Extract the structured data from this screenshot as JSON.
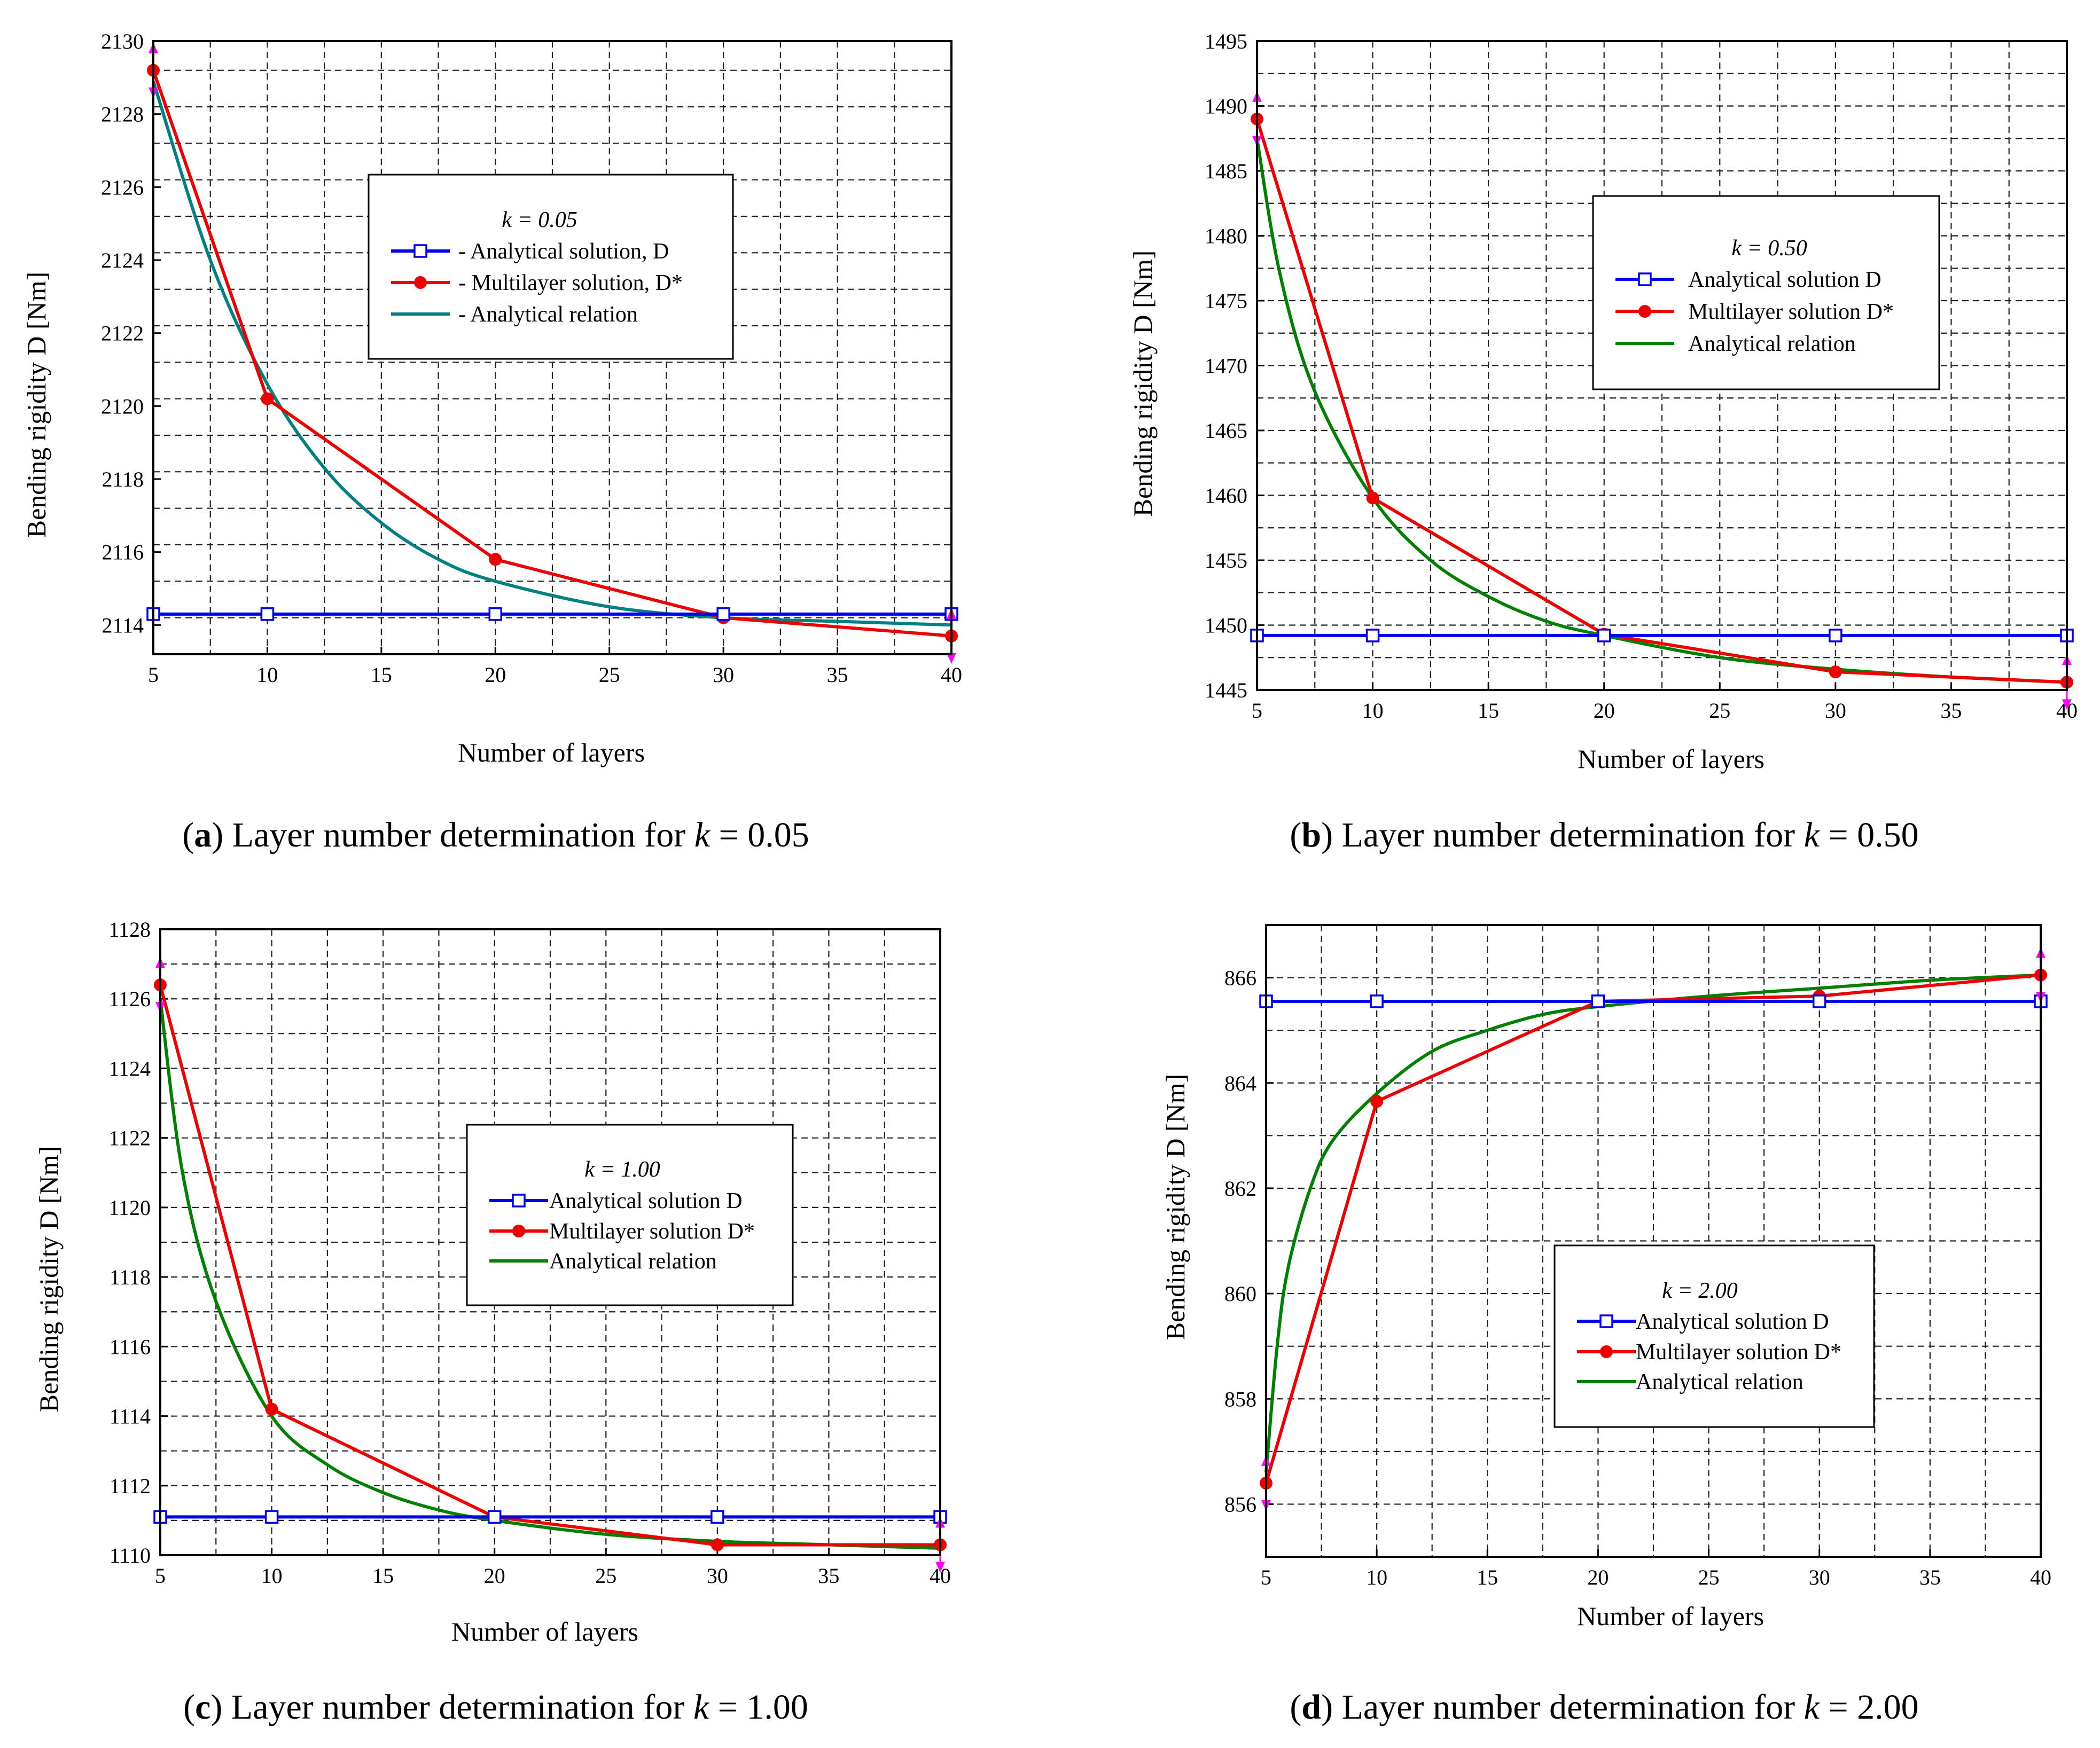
{
  "colors": {
    "analytical_solution": "#0000ee",
    "multilayer_solution": "#ee0000",
    "analytical_relation_a": "#008080",
    "analytical_relation": "#008000",
    "error_marker": "#ff00ff"
  },
  "chart_data": [
    {
      "type": "line",
      "panel_label": "a",
      "caption": "Layer number determination for ",
      "caption_k": "k",
      "caption_value": " = 0.05",
      "xlabel": "Number of layers",
      "ylabel": "Bending rigidity D  [Nm]",
      "xlim": [
        5,
        40
      ],
      "xticks": [
        5,
        10,
        15,
        20,
        25,
        30,
        35,
        40
      ],
      "ylim": [
        2113.2,
        2130
      ],
      "yticks": [
        2114,
        2116,
        2118,
        2120,
        2122,
        2124,
        2126,
        2128,
        2130
      ],
      "legend_title": "k = 0.05",
      "legend_position": "upper-middle",
      "legend": [
        "-  Analytical solution, D",
        "-  Multilayer solution, D*",
        "-  Analytical relation"
      ],
      "series": [
        {
          "name": "Analytical solution, D",
          "x": [
            5,
            10,
            20,
            30,
            40
          ],
          "y": [
            2114.3,
            2114.3,
            2114.3,
            2114.3,
            2114.3
          ]
        },
        {
          "name": "Multilayer solution, D*",
          "x": [
            5,
            10,
            20,
            30,
            40
          ],
          "y": [
            2129.2,
            2120.2,
            2115.8,
            2114.2,
            2113.7
          ]
        },
        {
          "name": "Analytical relation",
          "x": [
            5,
            7.5,
            10,
            12.5,
            15,
            17.5,
            20,
            25,
            30,
            35,
            40
          ],
          "y": [
            2128.9,
            2124.0,
            2120.6,
            2118.3,
            2116.8,
            2115.8,
            2115.2,
            2114.5,
            2114.2,
            2114.1,
            2114.0
          ]
        }
      ],
      "error_markers_x": [
        5,
        40
      ]
    },
    {
      "type": "line",
      "panel_label": "b",
      "caption": "Layer number determination for ",
      "caption_k": "k",
      "caption_value": " = 0.50",
      "xlabel": "Number of layers",
      "ylabel": "Bending rigidity D  [Nm]",
      "xlim": [
        5,
        40
      ],
      "xticks": [
        5,
        10,
        15,
        20,
        25,
        30,
        35,
        40
      ],
      "ylim": [
        1445,
        1495
      ],
      "yticks": [
        1445,
        1450,
        1455,
        1460,
        1465,
        1470,
        1475,
        1480,
        1485,
        1490,
        1495
      ],
      "legend_title": "k = 0.50",
      "legend_position": "upper-right",
      "legend": [
        "Analytical solution D",
        "Multilayer solution D*",
        "Analytical relation"
      ],
      "series": [
        {
          "name": "Analytical solution D",
          "x": [
            5,
            10,
            20,
            30,
            40
          ],
          "y": [
            1449.2,
            1449.2,
            1449.2,
            1449.2,
            1449.2
          ]
        },
        {
          "name": "Multilayer solution D*",
          "x": [
            5,
            10,
            20,
            30,
            40
          ],
          "y": [
            1489.0,
            1459.8,
            1449.3,
            1446.4,
            1445.6
          ]
        },
        {
          "name": "Analytical relation",
          "x": [
            5,
            6,
            7.5,
            10,
            12.5,
            15,
            17.5,
            20,
            25,
            30,
            35,
            40
          ],
          "y": [
            1487.5,
            1477.0,
            1468.0,
            1459.8,
            1455.0,
            1452.2,
            1450.3,
            1449.2,
            1447.5,
            1446.6,
            1446.0,
            1445.6
          ]
        }
      ],
      "error_markers_x": [
        5,
        40
      ]
    },
    {
      "type": "line",
      "panel_label": "c",
      "caption": "Layer number determination for ",
      "caption_k": "k",
      "caption_value": " = 1.00",
      "xlabel": "Number of layers",
      "ylabel": "Bending rigidity D  [Nm]",
      "xlim": [
        5,
        40
      ],
      "xticks": [
        5,
        10,
        15,
        20,
        25,
        30,
        35,
        40
      ],
      "ylim": [
        1110,
        1128
      ],
      "yticks": [
        1110,
        1112,
        1114,
        1116,
        1118,
        1120,
        1122,
        1124,
        1126,
        1128
      ],
      "legend_title": "k = 1.00",
      "legend_position": "center-right",
      "legend": [
        "Analytical solution D",
        "Multilayer solution D*",
        "Analytical relation"
      ],
      "series": [
        {
          "name": "Analytical solution D",
          "x": [
            5,
            10,
            20,
            30,
            40
          ],
          "y": [
            1111.1,
            1111.1,
            1111.1,
            1111.1,
            1111.1
          ]
        },
        {
          "name": "Multilayer solution D*",
          "x": [
            5,
            10,
            20,
            30,
            40
          ],
          "y": [
            1126.4,
            1114.2,
            1111.1,
            1110.3,
            1110.3
          ]
        },
        {
          "name": "Analytical relation",
          "x": [
            5,
            6,
            7.5,
            10,
            12.5,
            15,
            17.5,
            20,
            25,
            30,
            35,
            40
          ],
          "y": [
            1126.0,
            1121.0,
            1117.3,
            1114.0,
            1112.6,
            1111.8,
            1111.3,
            1111.0,
            1110.6,
            1110.4,
            1110.3,
            1110.2
          ]
        }
      ],
      "error_markers_x": [
        5,
        40
      ]
    },
    {
      "type": "line",
      "panel_label": "d",
      "caption": "Layer number determination for ",
      "caption_k": "k",
      "caption_value": " = 2.00",
      "xlabel": "Number of layers",
      "ylabel": "Bending rigidity D  [Nm]",
      "xlim": [
        5,
        40
      ],
      "xticks": [
        5,
        10,
        15,
        20,
        25,
        30,
        35,
        40
      ],
      "ylim": [
        855,
        867
      ],
      "yticks": [
        856,
        858,
        860,
        862,
        864,
        866
      ],
      "legend_title": "k = 2.00",
      "legend_position": "lower-middle",
      "legend": [
        "Analytical solution D",
        "Multilayer solution D*",
        "Analytical relation"
      ],
      "series": [
        {
          "name": "Analytical solution D",
          "x": [
            5,
            10,
            20,
            30,
            40
          ],
          "y": [
            865.55,
            865.55,
            865.55,
            865.55,
            865.55
          ]
        },
        {
          "name": "Multilayer solution D*",
          "x": [
            5,
            10,
            20,
            30,
            40
          ],
          "y": [
            856.4,
            863.65,
            865.55,
            865.65,
            866.05
          ]
        },
        {
          "name": "Analytical relation",
          "x": [
            5,
            5.5,
            6,
            7,
            8,
            10,
            12.5,
            15,
            17.5,
            20,
            25,
            30,
            35,
            40
          ],
          "y": [
            856.6,
            859.0,
            860.5,
            862.0,
            862.9,
            863.8,
            864.6,
            865.0,
            865.3,
            865.45,
            865.65,
            865.8,
            865.95,
            866.05
          ]
        }
      ],
      "error_markers_x": [
        5,
        40
      ]
    }
  ]
}
